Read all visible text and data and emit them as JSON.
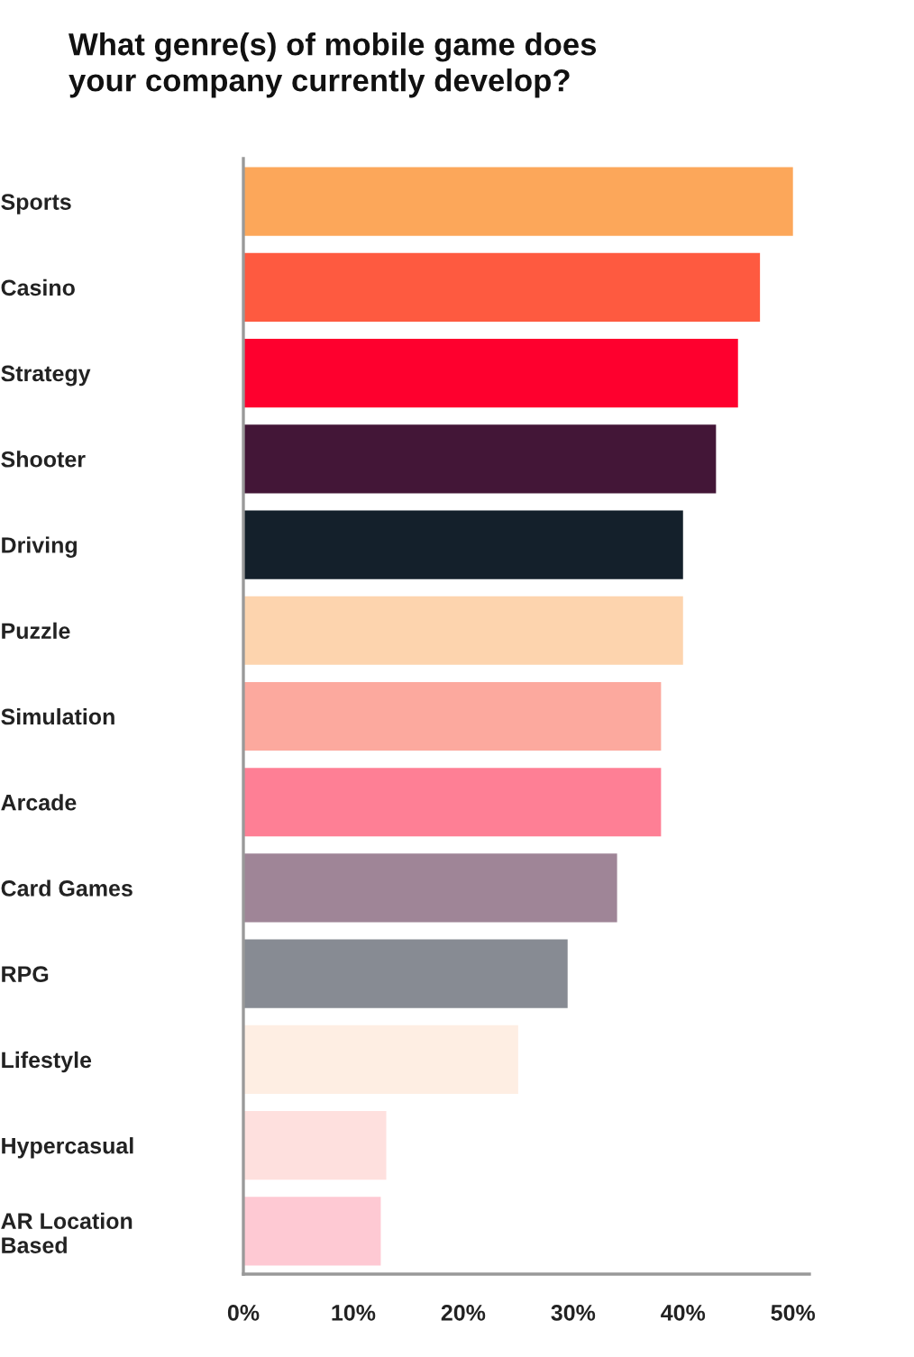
{
  "chart_data": {
    "type": "bar",
    "orientation": "horizontal",
    "title": "What genre(s) of mobile game does\nyour company currently develop?",
    "categories": [
      "Sports",
      "Casino",
      "Strategy",
      "Shooter",
      "Driving",
      "Puzzle",
      "Simulation",
      "Arcade",
      "Card Games",
      "RPG",
      "Lifestyle",
      "Hypercasual",
      "AR Location\nBased"
    ],
    "values": [
      50,
      47,
      45,
      43,
      40,
      40,
      38,
      38,
      34,
      29.5,
      25,
      13,
      12.5
    ],
    "colors": [
      "#fca75a",
      "#fe5a40",
      "#fe002e",
      "#431637",
      "#14202b",
      "#fdd4ae",
      "#fca99e",
      "#fe7f95",
      "#9f8597",
      "#878b93",
      "#feeee3",
      "#fee0de",
      "#fec9d3"
    ],
    "xlim": [
      0,
      51.5
    ],
    "xticks": [
      {
        "value": 0,
        "label": "0%"
      },
      {
        "value": 10,
        "label": "10%"
      },
      {
        "value": 20,
        "label": "20%"
      },
      {
        "value": 30,
        "label": "30%"
      },
      {
        "value": 40,
        "label": "40%"
      },
      {
        "value": 50,
        "label": "50%"
      }
    ],
    "grid": false
  }
}
